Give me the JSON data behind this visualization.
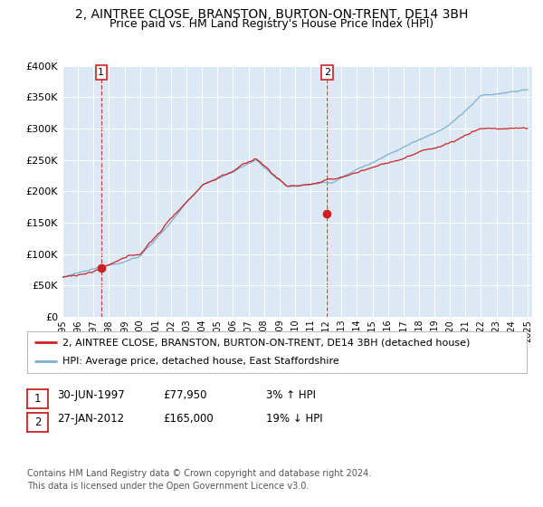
{
  "title1": "2, AINTREE CLOSE, BRANSTON, BURTON-ON-TRENT, DE14 3BH",
  "title2": "Price paid vs. HM Land Registry's House Price Index (HPI)",
  "background_color": "#dce9f5",
  "legend1": "2, AINTREE CLOSE, BRANSTON, BURTON-ON-TRENT, DE14 3BH (detached house)",
  "legend2": "HPI: Average price, detached house, East Staffordshire",
  "footnote": "Contains HM Land Registry data © Crown copyright and database right 2024.\nThis data is licensed under the Open Government Licence v3.0.",
  "transaction1_date": "30-JUN-1997",
  "transaction1_price": "£77,950",
  "transaction1_hpi": "3% ↑ HPI",
  "transaction2_date": "27-JAN-2012",
  "transaction2_price": "£165,000",
  "transaction2_hpi": "19% ↓ HPI",
  "ytick_vals": [
    0,
    50000,
    100000,
    150000,
    200000,
    250000,
    300000,
    350000,
    400000
  ],
  "hpi_color": "#7bafd4",
  "price_color": "#cc2222",
  "vline_color": "#cc2222",
  "dot_color": "#cc2222",
  "title1_fontsize": 10,
  "title2_fontsize": 9
}
